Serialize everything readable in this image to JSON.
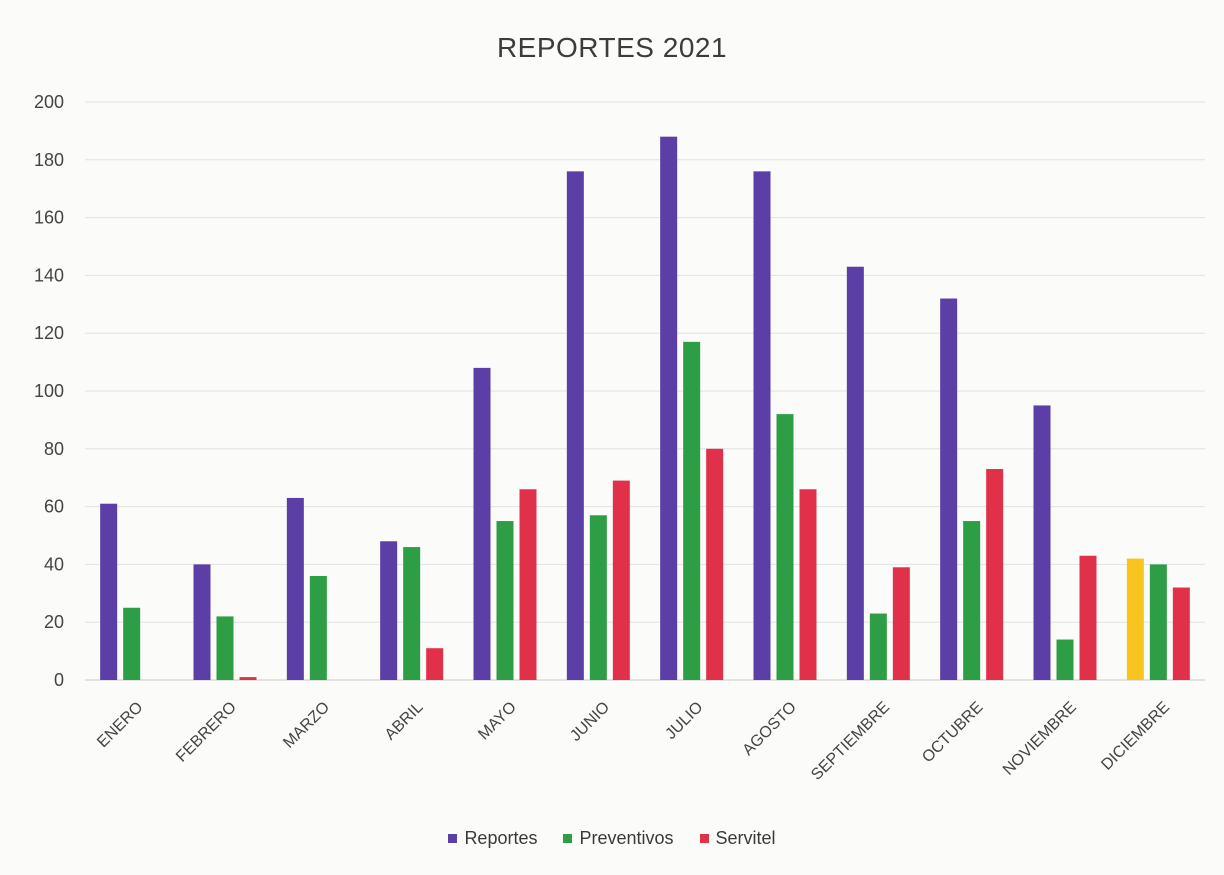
{
  "chart_data": {
    "type": "bar",
    "title": "REPORTES 2021",
    "xlabel": "",
    "ylabel": "",
    "ylim": [
      0,
      200
    ],
    "yticks": [
      0,
      20,
      40,
      60,
      80,
      100,
      120,
      140,
      160,
      180,
      200
    ],
    "categories": [
      "ENERO",
      "FEBRERO",
      "MARZO",
      "ABRIL",
      "MAYO",
      "JUNIO",
      "JULIO",
      "AGOSTO",
      "SEPTIEMBRE",
      "OCTUBRE",
      "NOVIEMBRE",
      "DICIEMBRE"
    ],
    "series": [
      {
        "name": "Reportes",
        "color": "#5b3ea6",
        "values": [
          61,
          40,
          63,
          48,
          108,
          176,
          188,
          176,
          143,
          132,
          95,
          42
        ]
      },
      {
        "name": "Preventivos",
        "color": "#2e9e46",
        "values": [
          25,
          22,
          36,
          46,
          55,
          57,
          117,
          92,
          23,
          55,
          14,
          40
        ]
      },
      {
        "name": "Servitel",
        "color": "#e0304a",
        "values": [
          0,
          1,
          0,
          11,
          66,
          69,
          80,
          66,
          39,
          73,
          43,
          32
        ]
      }
    ],
    "highlight": {
      "series": "Reportes",
      "category": "DICIEMBRE",
      "color": "#f7c51e"
    },
    "grid": true,
    "legend_position": "bottom"
  }
}
